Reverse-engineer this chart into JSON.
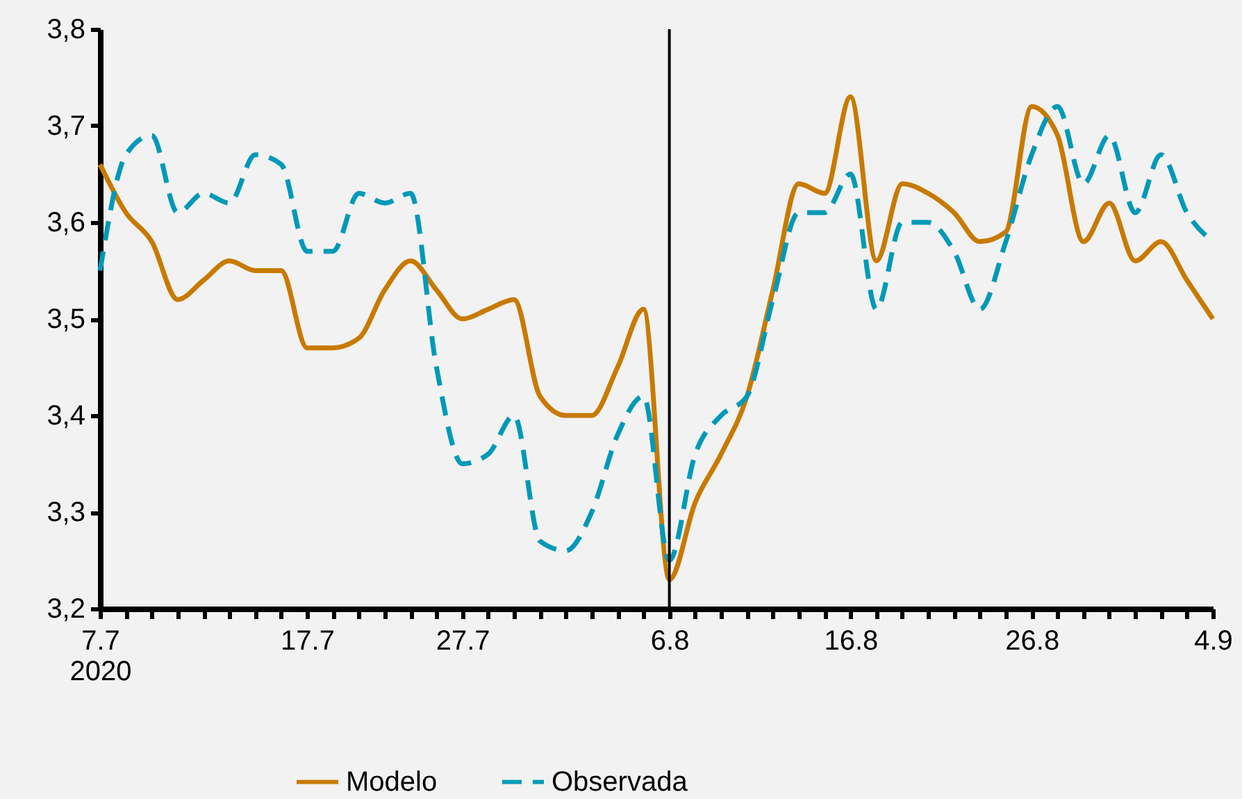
{
  "chart_data": {
    "type": "line",
    "categories": [
      "7.7\n2020",
      null,
      null,
      null,
      null,
      null,
      null,
      null,
      "17.7",
      null,
      null,
      null,
      null,
      null,
      "27.7",
      null,
      null,
      null,
      null,
      null,
      null,
      null,
      "6.8",
      null,
      null,
      null,
      null,
      null,
      null,
      "16.8",
      null,
      null,
      null,
      null,
      null,
      null,
      "26.8",
      null,
      null,
      null,
      null,
      null,
      null,
      "4.9"
    ],
    "series": [
      {
        "name": "Modelo",
        "color": "#c87a00",
        "line_style": "solid",
        "values": [
          3.66,
          3.61,
          3.58,
          3.52,
          3.54,
          3.56,
          3.55,
          3.55,
          3.47,
          3.47,
          3.48,
          3.53,
          3.56,
          3.53,
          3.5,
          3.51,
          3.52,
          3.42,
          3.4,
          3.4,
          3.45,
          3.51,
          3.23,
          3.31,
          3.36,
          3.42,
          3.53,
          3.64,
          3.63,
          3.73,
          3.56,
          3.64,
          3.63,
          3.61,
          3.58,
          3.59,
          3.72,
          3.69,
          3.58,
          3.62,
          3.56,
          3.58,
          3.54,
          3.5
        ]
      },
      {
        "name": "Observada",
        "color": "#0099b8",
        "line_style": "dashed",
        "values": [
          3.55,
          3.67,
          3.69,
          3.61,
          3.63,
          3.62,
          3.67,
          3.66,
          3.57,
          3.57,
          3.63,
          3.62,
          3.63,
          3.45,
          3.35,
          3.36,
          3.4,
          3.27,
          3.26,
          3.3,
          3.38,
          3.42,
          3.25,
          3.36,
          3.4,
          3.42,
          3.52,
          3.61,
          3.61,
          3.65,
          3.51,
          3.6,
          3.6,
          3.57,
          3.51,
          3.58,
          3.67,
          3.72,
          3.64,
          3.69,
          3.61,
          3.67,
          3.61,
          3.58
        ]
      }
    ],
    "ylim": [
      3.2,
      3.8
    ],
    "yticks": [
      {
        "value": 3.2,
        "label": "3,2"
      },
      {
        "value": 3.3,
        "label": "3,3"
      },
      {
        "value": 3.4,
        "label": "3,4"
      },
      {
        "value": 3.5,
        "label": "3,5"
      },
      {
        "value": 3.6,
        "label": "3,6"
      },
      {
        "value": 3.7,
        "label": "3,7"
      },
      {
        "value": 3.8,
        "label": "3,8"
      }
    ],
    "ref_lines": [
      {
        "axis": "x",
        "value": "6.8",
        "color": "#000000"
      }
    ],
    "legend": "bottom"
  }
}
